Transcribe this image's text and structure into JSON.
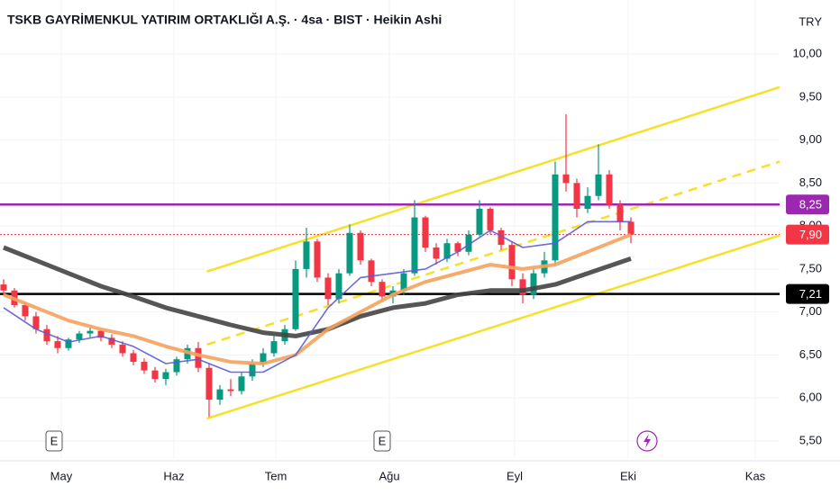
{
  "chart_data": {
    "type": "candlestick",
    "title": "TSKB GAYRİMENKUL YATIRIM ORTAKLIĞI A.Ş. · 4sa · BIST · Heikin Ashi",
    "currency": "TRY",
    "up_color": "#089981",
    "down_color": "#f23645",
    "grid": true,
    "xlim": [
      -0.33,
      71.75
    ],
    "ylim": [
      5.29,
      10.21
    ],
    "xticks": [
      {
        "value": 5.33,
        "label": "May"
      },
      {
        "value": 15.75,
        "label": "Haz"
      },
      {
        "value": 25.17,
        "label": "Tem"
      },
      {
        "value": 35.67,
        "label": "Ağu"
      },
      {
        "value": 47.25,
        "label": "Eyl"
      },
      {
        "value": 57.75,
        "label": "Eki"
      },
      {
        "value": 69.5,
        "label": "Kas"
      }
    ],
    "yticks": [
      {
        "value": 5.5,
        "label": "5,50"
      },
      {
        "value": 6,
        "label": "6,00"
      },
      {
        "value": 6.5,
        "label": "6,50"
      },
      {
        "value": 7,
        "label": "7,00"
      },
      {
        "value": 7.5,
        "label": "7,50"
      },
      {
        "value": 8,
        "label": "8,00"
      },
      {
        "value": 8.5,
        "label": "8,50"
      },
      {
        "value": 9,
        "label": "9,00"
      },
      {
        "value": 9.5,
        "label": "9,50"
      },
      {
        "value": 10,
        "label": "10,00"
      }
    ],
    "x": [
      0,
      1,
      2,
      3,
      4,
      5,
      6,
      7,
      8,
      9,
      10,
      11,
      12,
      13,
      14,
      15,
      16,
      17,
      18,
      19,
      20,
      21,
      22,
      23,
      24,
      25,
      26,
      27,
      28,
      29,
      30,
      31,
      32,
      33,
      34,
      35,
      36,
      37,
      38,
      39,
      40,
      41,
      42,
      43,
      44,
      45,
      46,
      47,
      48,
      49,
      50,
      51,
      52,
      53,
      54,
      55,
      56,
      57,
      58
    ],
    "candles": [
      [
        7.32,
        7.38,
        7.2,
        7.25
      ],
      [
        7.25,
        7.28,
        7.05,
        7.08
      ],
      [
        7.08,
        7.12,
        6.9,
        6.95
      ],
      [
        6.95,
        7.0,
        6.75,
        6.8
      ],
      [
        6.8,
        6.85,
        6.62,
        6.66
      ],
      [
        6.66,
        6.72,
        6.52,
        6.58
      ],
      [
        6.58,
        6.7,
        6.55,
        6.68
      ],
      [
        6.68,
        6.78,
        6.64,
        6.75
      ],
      [
        6.75,
        6.82,
        6.7,
        6.78
      ],
      [
        6.78,
        6.8,
        6.66,
        6.7
      ],
      [
        6.7,
        6.74,
        6.58,
        6.62
      ],
      [
        6.62,
        6.66,
        6.48,
        6.52
      ],
      [
        6.52,
        6.56,
        6.38,
        6.42
      ],
      [
        6.42,
        6.46,
        6.28,
        6.32
      ],
      [
        6.32,
        6.36,
        6.18,
        6.22
      ],
      [
        6.22,
        6.34,
        6.15,
        6.3
      ],
      [
        6.3,
        6.48,
        6.26,
        6.45
      ],
      [
        6.45,
        6.62,
        6.4,
        6.58
      ],
      [
        6.58,
        6.65,
        6.3,
        6.35
      ],
      [
        6.35,
        6.4,
        5.78,
        5.98
      ],
      [
        5.98,
        6.15,
        5.92,
        6.1
      ],
      [
        6.1,
        6.22,
        6.02,
        6.08
      ],
      [
        6.08,
        6.3,
        6.04,
        6.25
      ],
      [
        6.25,
        6.45,
        6.2,
        6.4
      ],
      [
        6.4,
        6.58,
        6.36,
        6.52
      ],
      [
        6.52,
        6.72,
        6.48,
        6.66
      ],
      [
        6.66,
        6.85,
        6.62,
        6.8
      ],
      [
        6.8,
        7.6,
        6.78,
        7.5
      ],
      [
        7.5,
        7.98,
        7.4,
        7.82
      ],
      [
        7.82,
        7.85,
        7.35,
        7.4
      ],
      [
        7.4,
        7.45,
        7.08,
        7.15
      ],
      [
        7.15,
        7.5,
        7.1,
        7.45
      ],
      [
        7.45,
        8.02,
        7.42,
        7.92
      ],
      [
        7.92,
        7.95,
        7.55,
        7.6
      ],
      [
        7.6,
        7.62,
        7.3,
        7.35
      ],
      [
        7.35,
        7.38,
        7.12,
        7.18
      ],
      [
        7.18,
        7.3,
        7.1,
        7.25
      ],
      [
        7.25,
        7.5,
        7.2,
        7.45
      ],
      [
        7.45,
        8.3,
        7.42,
        8.1
      ],
      [
        8.1,
        8.12,
        7.7,
        7.75
      ],
      [
        7.75,
        7.8,
        7.55,
        7.62
      ],
      [
        7.62,
        7.85,
        7.58,
        7.8
      ],
      [
        7.8,
        7.82,
        7.65,
        7.7
      ],
      [
        7.7,
        7.95,
        7.66,
        7.9
      ],
      [
        7.9,
        8.3,
        7.88,
        8.2
      ],
      [
        8.2,
        8.22,
        7.9,
        7.95
      ],
      [
        7.95,
        7.98,
        7.72,
        7.78
      ],
      [
        7.78,
        7.82,
        7.3,
        7.38
      ],
      [
        7.38,
        7.45,
        7.1,
        7.2
      ],
      [
        7.2,
        7.5,
        7.15,
        7.45
      ],
      [
        7.45,
        7.7,
        7.4,
        7.6
      ],
      [
        7.6,
        8.75,
        7.55,
        8.6
      ],
      [
        8.6,
        9.3,
        8.4,
        8.5
      ],
      [
        8.5,
        8.55,
        8.1,
        8.2
      ],
      [
        8.2,
        8.45,
        8.15,
        8.35
      ],
      [
        8.35,
        8.95,
        8.3,
        8.6
      ],
      [
        8.6,
        8.65,
        8.2,
        8.25
      ],
      [
        8.25,
        8.3,
        7.95,
        8.05
      ],
      [
        8.05,
        8.1,
        7.8,
        7.9
      ]
    ],
    "lines": [
      {
        "color": "#444444",
        "width": 5,
        "x": [
          0,
          3,
          6,
          9,
          12,
          15,
          18,
          21,
          24,
          27,
          30,
          33,
          36,
          39,
          42,
          45,
          48,
          51,
          54,
          58
        ],
        "values": [
          7.75,
          7.6,
          7.45,
          7.3,
          7.18,
          7.05,
          6.95,
          6.85,
          6.76,
          6.72,
          6.8,
          6.95,
          7.05,
          7.1,
          7.2,
          7.25,
          7.25,
          7.32,
          7.45,
          7.62
        ]
      },
      {
        "color": "#f5a25d",
        "width": 4,
        "x": [
          0,
          3,
          6,
          9,
          12,
          15,
          18,
          21,
          24,
          27,
          30,
          33,
          36,
          39,
          42,
          45,
          48,
          51,
          54,
          58
        ],
        "values": [
          7.2,
          7.05,
          6.9,
          6.8,
          6.72,
          6.6,
          6.5,
          6.42,
          6.4,
          6.5,
          6.8,
          7.0,
          7.2,
          7.35,
          7.45,
          7.55,
          7.5,
          7.55,
          7.7,
          7.9
        ]
      },
      {
        "color": "#5b5bd6",
        "width": 1.6,
        "x": [
          0,
          3,
          6,
          9,
          12,
          15,
          18,
          21,
          24,
          27,
          30,
          33,
          36,
          39,
          42,
          45,
          48,
          51,
          54,
          58
        ],
        "values": [
          7.05,
          6.8,
          6.65,
          6.72,
          6.6,
          6.4,
          6.45,
          6.3,
          6.3,
          6.5,
          7.05,
          7.4,
          7.45,
          7.5,
          7.7,
          7.95,
          7.75,
          7.8,
          8.05,
          8.05
        ]
      }
    ],
    "channel": {
      "color": "#f5e02a",
      "x": [
        18.8,
        71.75
      ],
      "upper": [
        7.47,
        9.615
      ],
      "middle": [
        6.62,
        8.75
      ],
      "lower": [
        5.76,
        7.89
      ]
    },
    "levels": [
      {
        "value": 8.25,
        "label": "8,25",
        "color": "#9c27b0",
        "style": "solid"
      },
      {
        "value": 7.9,
        "label": "7,90",
        "color": "#f23645",
        "style": "dotted"
      },
      {
        "value": 7.21,
        "label": "7,21",
        "color": "#000000",
        "style": "solid"
      }
    ],
    "events": [
      {
        "x": 4.67,
        "label": "E"
      },
      {
        "x": 35,
        "label": "E"
      }
    ]
  }
}
